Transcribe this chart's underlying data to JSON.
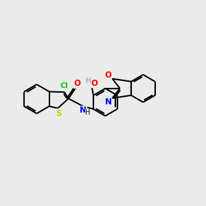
{
  "background_color": "#EBEBEB",
  "bond_color": "#000000",
  "bond_width": 1.5,
  "atoms": {
    "Cl": {
      "color": "#00CC00"
    },
    "S": {
      "color": "#CCCC00"
    },
    "O": {
      "color": "#FF0000"
    },
    "N": {
      "color": "#0000FF"
    },
    "H_teal": {
      "color": "#5F9EA0"
    }
  },
  "figsize": [
    3.0,
    3.0
  ],
  "dpi": 100
}
